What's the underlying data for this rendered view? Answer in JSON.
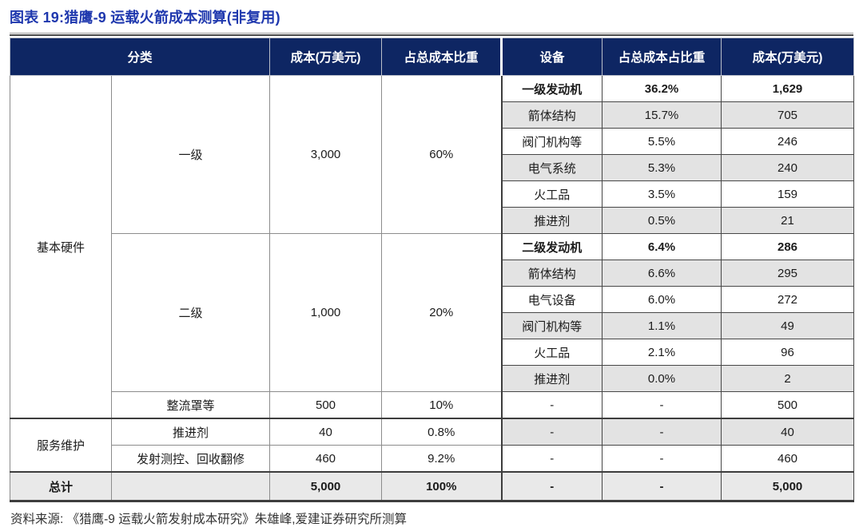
{
  "title": "图表 19:猎鹰-9 运载火箭成本测算(非复用)",
  "source": "资料来源: 《猎鹰-9 运载火箭发射成本研究》朱雄峰,爱建证券研究所测算",
  "colors": {
    "title_blue": "#1F38AE",
    "header_navy": "#0E2663",
    "stripe_gray": "#E3E3E3",
    "total_row_gray": "#E9E9E9"
  },
  "table": {
    "headers": [
      {
        "label": "分类",
        "colspan": 2
      },
      {
        "label": "成本(万美元)"
      },
      {
        "label": "占总成本比重"
      },
      {
        "label": "设备"
      },
      {
        "label": "占总成本占比重"
      },
      {
        "label": "成本(万美元)"
      }
    ],
    "rows": [
      {
        "shade": false,
        "cells": [
          {
            "t": "基本硬件",
            "rs": 13,
            "name": "category-basic-hardware"
          },
          {
            "t": "一级",
            "rs": 6,
            "name": "subcategory-stage-1"
          },
          {
            "t": "3,000",
            "rs": 6
          },
          {
            "t": "60%",
            "rs": 6
          },
          {
            "t": "一级发动机",
            "b": 1,
            "dev": 1,
            "df": 1
          },
          {
            "t": "36.2%",
            "b": 1,
            "dev": 1
          },
          {
            "t": "1,629",
            "b": 1,
            "dev": 1
          }
        ]
      },
      {
        "shade": true,
        "cells": [
          {
            "t": "箭体结构",
            "dev": 1,
            "df": 1
          },
          {
            "t": "15.7%",
            "dev": 1
          },
          {
            "t": "705",
            "dev": 1
          }
        ]
      },
      {
        "shade": false,
        "cells": [
          {
            "t": "阀门机构等",
            "dev": 1,
            "df": 1
          },
          {
            "t": "5.5%",
            "dev": 1
          },
          {
            "t": "246",
            "dev": 1
          }
        ]
      },
      {
        "shade": true,
        "cells": [
          {
            "t": "电气系统",
            "dev": 1,
            "df": 1
          },
          {
            "t": "5.3%",
            "dev": 1
          },
          {
            "t": "240",
            "dev": 1
          }
        ]
      },
      {
        "shade": false,
        "cells": [
          {
            "t": "火工品",
            "dev": 1,
            "df": 1
          },
          {
            "t": "3.5%",
            "dev": 1
          },
          {
            "t": "159",
            "dev": 1
          }
        ]
      },
      {
        "shade": true,
        "cells": [
          {
            "t": "推进剂",
            "dev": 1,
            "df": 1
          },
          {
            "t": "0.5%",
            "dev": 1
          },
          {
            "t": "21",
            "dev": 1
          }
        ]
      },
      {
        "shade": false,
        "cells": [
          {
            "t": "二级",
            "rs": 6,
            "name": "subcategory-stage-2"
          },
          {
            "t": "1,000",
            "rs": 6
          },
          {
            "t": "20%",
            "rs": 6
          },
          {
            "t": "二级发动机",
            "b": 1,
            "dev": 1,
            "df": 1
          },
          {
            "t": "6.4%",
            "b": 1,
            "dev": 1
          },
          {
            "t": "286",
            "b": 1,
            "dev": 1
          }
        ]
      },
      {
        "shade": true,
        "cells": [
          {
            "t": "箭体结构",
            "dev": 1,
            "df": 1
          },
          {
            "t": "6.6%",
            "dev": 1
          },
          {
            "t": "295",
            "dev": 1
          }
        ]
      },
      {
        "shade": false,
        "cells": [
          {
            "t": "电气设备",
            "dev": 1,
            "df": 1
          },
          {
            "t": "6.0%",
            "dev": 1
          },
          {
            "t": "272",
            "dev": 1
          }
        ]
      },
      {
        "shade": true,
        "cells": [
          {
            "t": "阀门机构等",
            "dev": 1,
            "df": 1
          },
          {
            "t": "1.1%",
            "dev": 1
          },
          {
            "t": "49",
            "dev": 1
          }
        ]
      },
      {
        "shade": false,
        "cells": [
          {
            "t": "火工品",
            "dev": 1,
            "df": 1
          },
          {
            "t": "2.1%",
            "dev": 1
          },
          {
            "t": "96",
            "dev": 1
          }
        ]
      },
      {
        "shade": true,
        "cells": [
          {
            "t": "推进剂",
            "dev": 1,
            "df": 1
          },
          {
            "t": "0.0%",
            "dev": 1
          },
          {
            "t": "2",
            "dev": 1
          }
        ]
      },
      {
        "shade": false,
        "cells": [
          {
            "t": "整流罩等",
            "name": "subcategory-fairing"
          },
          {
            "t": "500"
          },
          {
            "t": "10%"
          },
          {
            "t": "-",
            "dev": 1,
            "df": 1
          },
          {
            "t": "-",
            "dev": 1
          },
          {
            "t": "500",
            "dev": 1
          }
        ]
      },
      {
        "shade": true,
        "thickTop": true,
        "cells": [
          {
            "t": "服务维护",
            "rs": 2,
            "name": "category-service-maintenance"
          },
          {
            "t": "推进剂"
          },
          {
            "t": "40"
          },
          {
            "t": "0.8%"
          },
          {
            "t": "-",
            "dev": 1,
            "df": 1
          },
          {
            "t": "-",
            "dev": 1
          },
          {
            "t": "40",
            "dev": 1
          }
        ]
      },
      {
        "shade": false,
        "cells": [
          {
            "t": "发射测控、回收翻修"
          },
          {
            "t": "460"
          },
          {
            "t": "9.2%"
          },
          {
            "t": "-",
            "dev": 1,
            "df": 1
          },
          {
            "t": "-",
            "dev": 1
          },
          {
            "t": "460",
            "dev": 1
          }
        ]
      },
      {
        "total": true,
        "thickTop": true,
        "cells": [
          {
            "t": "总计",
            "b": 1,
            "name": "total-label"
          },
          {
            "t": ""
          },
          {
            "t": "5,000",
            "b": 1
          },
          {
            "t": "100%",
            "b": 1
          },
          {
            "t": "-",
            "b": 1,
            "dev": 1,
            "df": 1
          },
          {
            "t": "-",
            "b": 1,
            "dev": 1
          },
          {
            "t": "5,000",
            "b": 1,
            "dev": 1
          }
        ]
      }
    ]
  }
}
